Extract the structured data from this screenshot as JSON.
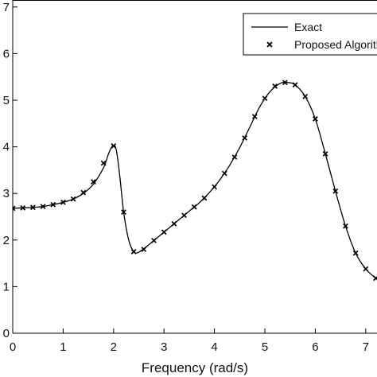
{
  "chart_data": {
    "type": "line",
    "xlabel": "Frequency (rad/s)",
    "ylabel": "",
    "xlim": [
      0,
      7.2
    ],
    "ylim": [
      0,
      7
    ],
    "x_ticks": [
      0,
      1,
      2,
      3,
      4,
      5,
      6,
      7
    ],
    "y_ticks": [
      0,
      1,
      2,
      3,
      4,
      5,
      6,
      7
    ],
    "x_tick_labels": [
      "0",
      "1",
      "2",
      "3",
      "4",
      "5",
      "6",
      "7"
    ],
    "y_tick_labels": [
      "0",
      "1",
      "2",
      "3",
      "4",
      "5",
      "6",
      "7"
    ],
    "grid": false,
    "legend_position": "top-right",
    "series": [
      {
        "name": "Exact",
        "style": "line",
        "color": "#000000",
        "x": [
          0,
          0.2,
          0.4,
          0.6,
          0.8,
          1.0,
          1.2,
          1.4,
          1.6,
          1.8,
          1.9,
          1.98,
          2.05,
          2.12,
          2.2,
          2.3,
          2.4,
          2.5,
          2.7,
          2.9,
          3.1,
          3.3,
          3.5,
          3.7,
          3.9,
          4.1,
          4.3,
          4.5,
          4.7,
          4.9,
          5.1,
          5.3,
          5.45,
          5.6,
          5.8,
          6.0,
          6.2,
          6.4,
          6.6,
          6.8,
          7.0,
          7.2
        ],
        "y": [
          2.68,
          2.69,
          2.7,
          2.72,
          2.76,
          2.81,
          2.88,
          3.0,
          3.2,
          3.55,
          3.85,
          4.02,
          3.95,
          3.4,
          2.6,
          2.0,
          1.75,
          1.74,
          1.9,
          2.08,
          2.26,
          2.44,
          2.62,
          2.8,
          3.02,
          3.28,
          3.6,
          3.98,
          4.42,
          4.86,
          5.18,
          5.36,
          5.38,
          5.33,
          5.08,
          4.6,
          3.85,
          3.05,
          2.3,
          1.72,
          1.38,
          1.18
        ]
      },
      {
        "name": "Proposed Algorithm",
        "style": "markers",
        "marker": "x",
        "color": "#000000",
        "x": [
          0,
          0.2,
          0.4,
          0.6,
          0.8,
          1.0,
          1.2,
          1.4,
          1.6,
          1.8,
          2.0,
          2.2,
          2.4,
          2.6,
          2.8,
          3.0,
          3.2,
          3.4,
          3.6,
          3.8,
          4.0,
          4.2,
          4.4,
          4.6,
          4.8,
          5.0,
          5.2,
          5.4,
          5.6,
          5.8,
          6.0,
          6.2,
          6.4,
          6.6,
          6.8,
          7.0,
          7.2
        ],
        "y": [
          2.68,
          2.69,
          2.7,
          2.72,
          2.76,
          2.81,
          2.88,
          3.02,
          3.25,
          3.65,
          4.02,
          2.6,
          1.75,
          1.8,
          1.99,
          2.17,
          2.35,
          2.53,
          2.71,
          2.9,
          3.14,
          3.43,
          3.78,
          4.19,
          4.65,
          5.04,
          5.3,
          5.38,
          5.33,
          5.08,
          4.6,
          3.85,
          3.05,
          2.3,
          1.72,
          1.38,
          1.18
        ]
      }
    ]
  },
  "legend": {
    "entries": [
      "Exact",
      "Proposed Algorithm"
    ]
  }
}
